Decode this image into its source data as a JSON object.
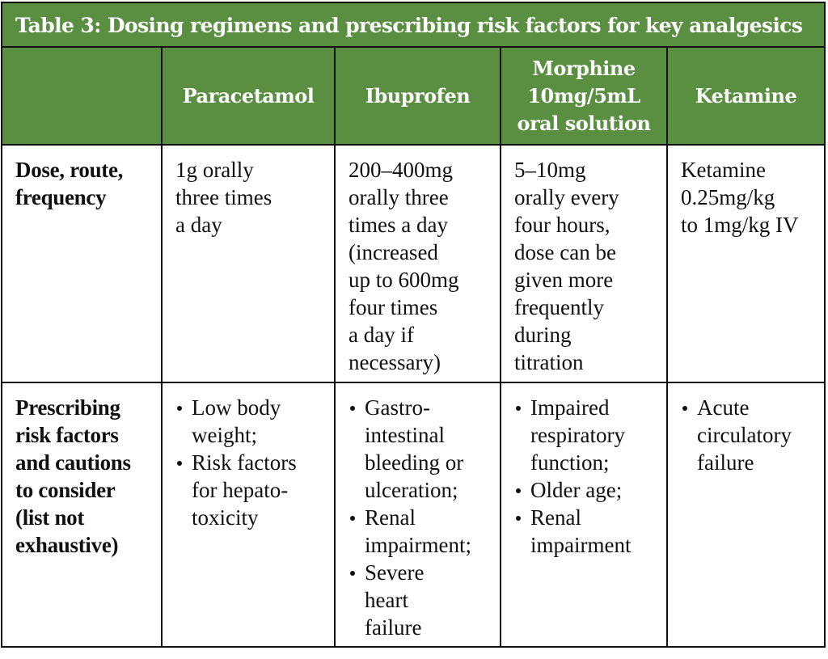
{
  "table": {
    "title": "Table 3: Dosing regimens and prescribing risk factors for key analgesics",
    "colors": {
      "header_green": "#5a8f42",
      "border": "#111111",
      "header_text": "#ffffff"
    },
    "columns": [
      "",
      "Paracetamol",
      "Ibuprofen",
      "Morphine\n10mg/5mL\noral solution",
      "Ketamine"
    ],
    "rows": [
      {
        "label": "Dose, route,\nfrequency",
        "cells": [
          "1g orally\nthree times\na day",
          "200–400mg\norally three\ntimes a day\n(increased\nup to 600mg\nfour times\na day if\nnecessary)",
          "5–10mg\norally every\nfour hours,\ndose can be\ngiven more\nfrequently\nduring\ntitration",
          "Ketamine\n0.25mg/kg\nto 1mg/kg IV"
        ]
      },
      {
        "label": "Prescribing\nrisk factors\nand cautions\nto consider\n(list not\nexhaustive)",
        "cells": [
          [
            "Low body\nweight;",
            "Risk factors\nfor hepato-\ntoxicity"
          ],
          [
            "Gastro-\nintestinal\nbleeding or\nulceration;",
            "Renal\nimpairment;",
            "Severe\nheart\nfailure"
          ],
          [
            "Impaired\nrespiratory\nfunction;",
            "Older age;",
            "Renal\nimpairment"
          ],
          [
            "Acute\ncirculatory\nfailure"
          ]
        ]
      }
    ]
  }
}
